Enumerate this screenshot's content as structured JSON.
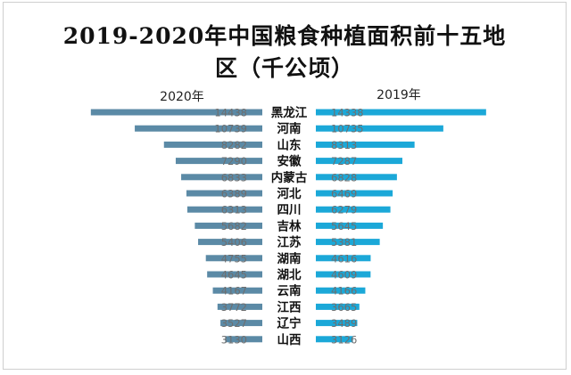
{
  "chart_data": {
    "type": "bar",
    "title_line1": "2019-2020年中国粮食种植面积前十五地",
    "title_line2": "区（千公顷）",
    "categories": [
      "黑龙江",
      "河南",
      "山东",
      "安徽",
      "内蒙古",
      "河北",
      "四川",
      "吉林",
      "江苏",
      "湖南",
      "湖北",
      "云南",
      "江西",
      "辽宁",
      "山西"
    ],
    "series": [
      {
        "name": "2020年",
        "direction": "left",
        "color": "#5b8aa6",
        "values": [
          14438,
          10739,
          8282,
          7290,
          6833,
          6389,
          6313,
          5682,
          5406,
          4755,
          4645,
          4167,
          3772,
          3527,
          3130
        ]
      },
      {
        "name": "2019年",
        "direction": "right",
        "color": "#1ba8d8",
        "values": [
          14338,
          10735,
          8313,
          7287,
          6828,
          6469,
          6279,
          5645,
          5381,
          4616,
          4609,
          4166,
          3665,
          3489,
          3126
        ]
      }
    ],
    "grid": false,
    "legend_placement": "top"
  }
}
